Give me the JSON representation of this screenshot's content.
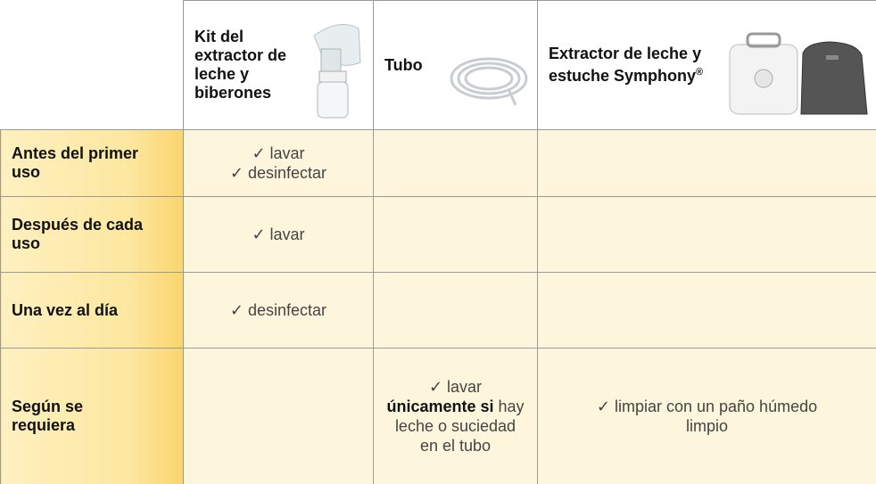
{
  "table": {
    "header": [
      {
        "text": ""
      },
      {
        "text": "Kit del extractor de leche y biberones"
      },
      {
        "text": "Tubo"
      },
      {
        "text": "Extractor de leche y estuche Symphony",
        "sup": "®"
      }
    ],
    "rows": [
      {
        "label": "Antes del primer uso",
        "cells": [
          [
            [
              {
                "text": "✓ lavar"
              }
            ],
            [
              {
                "text": "✓ desinfectar"
              }
            ]
          ],
          [],
          []
        ]
      },
      {
        "label": "Después de cada uso",
        "cells": [
          [
            [
              {
                "text": "✓ lavar"
              }
            ]
          ],
          [],
          []
        ]
      },
      {
        "label": "Una vez al día",
        "cells": [
          [
            [
              {
                "text": "✓ desinfectar"
              }
            ]
          ],
          [],
          []
        ]
      },
      {
        "label": "Según se requiera",
        "cells": [
          [],
          [
            [
              {
                "text": "✓ lavar"
              }
            ],
            [
              {
                "text": "únicamente si",
                "bold": true
              },
              {
                "text": " hay leche o suciedad en el tubo"
              }
            ]
          ],
          [
            [
              {
                "text": "✓ limpiar con un paño húmedo limpio"
              }
            ]
          ]
        ]
      }
    ]
  }
}
